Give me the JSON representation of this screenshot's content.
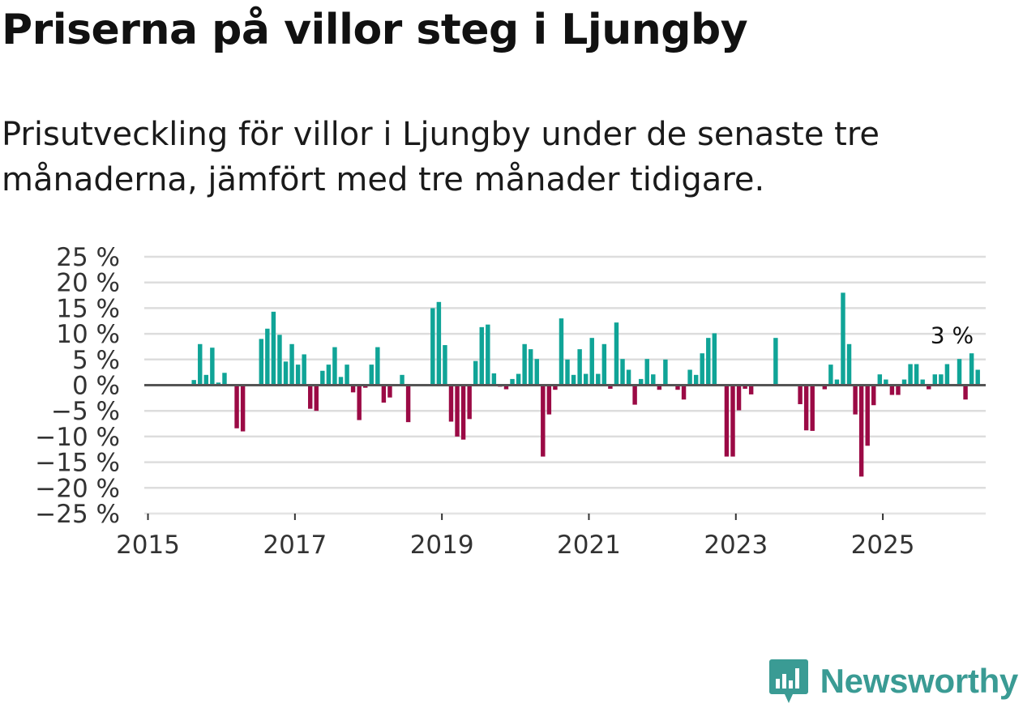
{
  "title": "Priserna på villor steg i Ljungby",
  "subtitle": "Prisutveckling för villor i Ljungby under de senaste tre månaderna, jämfört med tre månader tidigare.",
  "brand": {
    "name": "Newsworthy",
    "icon": "newsworthy-logo-icon"
  },
  "colors": {
    "positive": "#10a497",
    "negative": "#9b0a45",
    "grid": "#dddddd",
    "zero": "#555555",
    "brand": "#3a9b94"
  },
  "chart_data": {
    "type": "bar",
    "title": "Priserna på villor steg i Ljungby",
    "ylabel": "",
    "xlabel": "",
    "ylim": [
      -25,
      25
    ],
    "xlim": [
      2014.95,
      2026.4
    ],
    "y_ticks": [
      25,
      20,
      15,
      10,
      5,
      0,
      -5,
      -10,
      -15,
      -20,
      -25
    ],
    "y_tick_labels": [
      "25 %",
      "20 %",
      "15 %",
      "10 %",
      "5 %",
      "0 %",
      "−5 %",
      "−10 %",
      "−15 %",
      "−20 %",
      "−25 %"
    ],
    "x_ticks": [
      2015,
      2017,
      2019,
      2021,
      2023,
      2025
    ],
    "x_tick_labels": [
      "2015",
      "2017",
      "2019",
      "2021",
      "2023",
      "2025"
    ],
    "grid": "horizontal",
    "annotation": {
      "label": "3 %",
      "x": "2025-11",
      "value": 3
    },
    "series": [
      {
        "name": "Prisutveckling",
        "start": "2015-01",
        "values": [
          null,
          null,
          null,
          null,
          null,
          null,
          null,
          1,
          8,
          2,
          7.3,
          0.5,
          2.4,
          0,
          -8.4,
          -9,
          0,
          0,
          9,
          11,
          14.3,
          9.8,
          4.6,
          8,
          4,
          6,
          -4.6,
          -5,
          2.8,
          4,
          7.4,
          1.6,
          4,
          -1.4,
          -6.8,
          -0.5,
          4,
          7.4,
          -3.4,
          -2.4,
          0,
          2,
          -7.2,
          0,
          0,
          0,
          15,
          16.2,
          7.8,
          -7.1,
          -10,
          -10.6,
          -6.6,
          4.7,
          11.3,
          11.8,
          2.3,
          -0.3,
          -0.8,
          1.2,
          2.2,
          8,
          7,
          5.1,
          -13.9,
          -5.7,
          -0.9,
          13,
          5,
          2,
          7,
          2.2,
          9.2,
          2.2,
          8,
          -0.7,
          12.2,
          5.1,
          3,
          -3.8,
          1.2,
          5.1,
          2.1,
          -0.9,
          5,
          0,
          -0.9,
          -2.8,
          3,
          2,
          6.2,
          9.2,
          10.1,
          0,
          -13.9,
          -13.9,
          -4.9,
          -0.7,
          -1.8,
          0,
          0,
          0,
          9.2,
          0,
          0,
          0,
          -3.7,
          -8.8,
          -8.9,
          0,
          -0.8,
          4,
          1.1,
          18,
          8,
          -5.7,
          -17.8,
          -11.8,
          -3.9,
          2.1,
          1.1,
          -1.9,
          -1.9,
          1.1,
          4.1,
          4.1,
          1.1,
          -0.8,
          2.1,
          2.1,
          4.1,
          0,
          5.1,
          -2.8,
          6.2,
          3
        ]
      }
    ]
  }
}
